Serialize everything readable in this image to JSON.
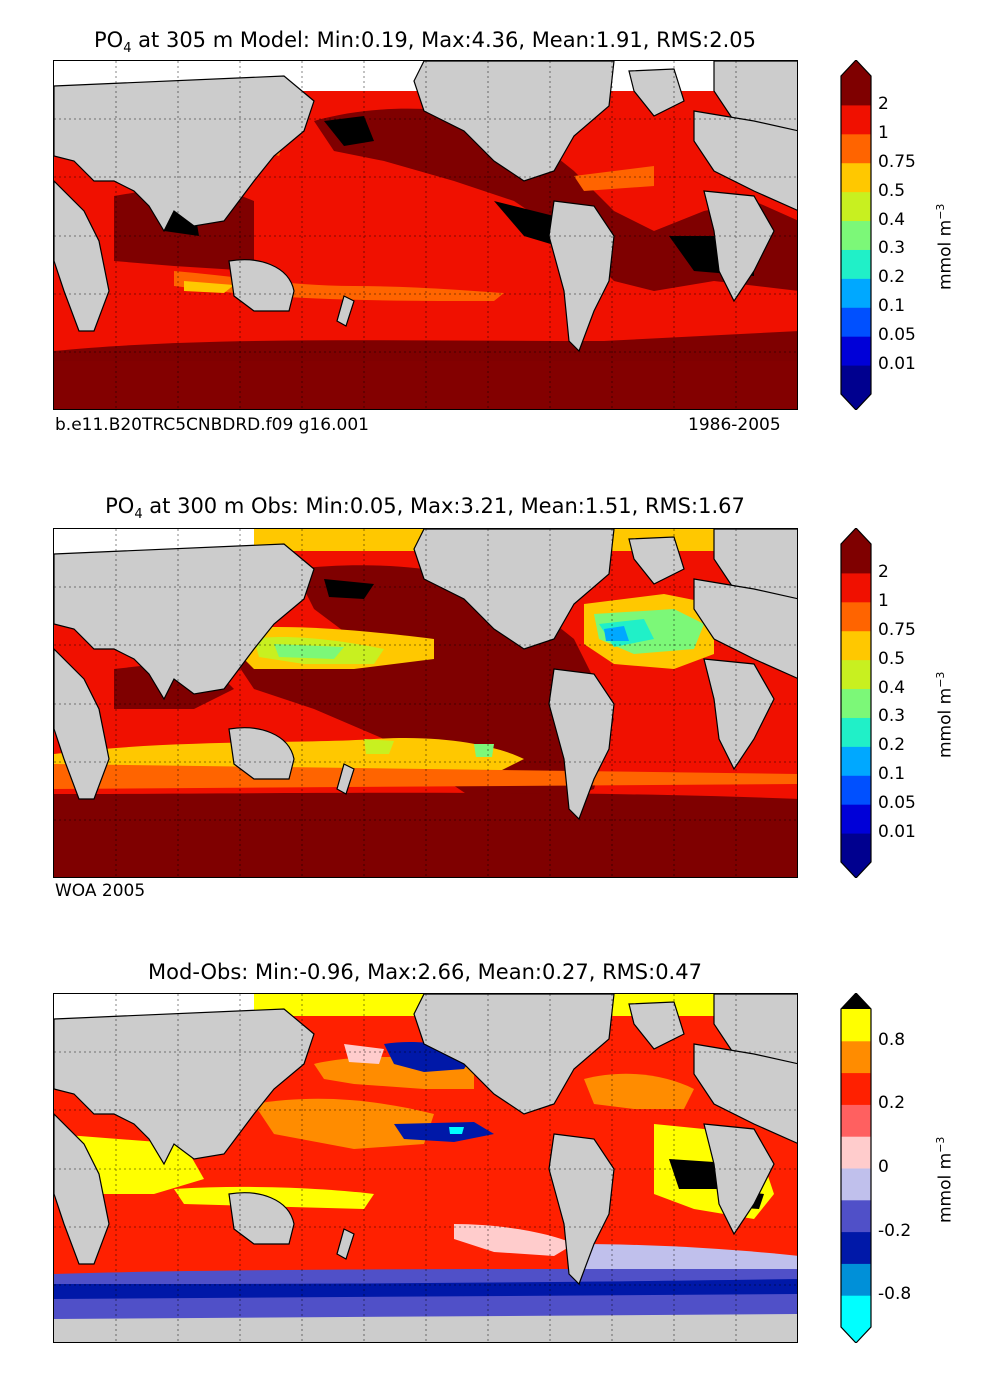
{
  "panels": [
    {
      "id": "model",
      "title_main": "PO",
      "title_sub": "4",
      "title_rest": " at 305 m Model: Min:0.19, Max:4.36, Mean:1.91, RMS:2.05",
      "footer_left": "b.e11.B20TRC5CNBDRD.f09 g16.001",
      "footer_right": "1986-2005",
      "colorbar": {
        "units_main": "mmol m",
        "units_sup": "−3",
        "ticks": [
          "0.01",
          "0.05",
          "0.1",
          "0.2",
          "0.3",
          "0.4",
          "0.5",
          "0.75",
          "1",
          "2"
        ],
        "colors": [
          "#00008f",
          "#0000d8",
          "#0050ff",
          "#00a8ff",
          "#20f0c8",
          "#7cf878",
          "#c8f020",
          "#ffc800",
          "#ff6400",
          "#f01000",
          "#7f0000"
        ],
        "extend_low": "#00008f",
        "extend_high": "#7f0000"
      }
    },
    {
      "id": "obs",
      "title_main": "PO",
      "title_sub": "4",
      "title_rest": " at 300 m Obs: Min:0.05, Max:3.21, Mean:1.51, RMS:1.67",
      "footer_left": "WOA 2005",
      "footer_right": "",
      "colorbar": {
        "units_main": "mmol m",
        "units_sup": "−3",
        "ticks": [
          "0.01",
          "0.05",
          "0.1",
          "0.2",
          "0.3",
          "0.4",
          "0.5",
          "0.75",
          "1",
          "2"
        ],
        "colors": [
          "#00008f",
          "#0000d8",
          "#0050ff",
          "#00a8ff",
          "#20f0c8",
          "#7cf878",
          "#c8f020",
          "#ffc800",
          "#ff6400",
          "#f01000",
          "#7f0000"
        ],
        "extend_low": "#00008f",
        "extend_high": "#7f0000"
      }
    },
    {
      "id": "diff",
      "title_main": "Mod-Obs: Min:-0.96, Max:2.66, Mean:0.27, RMS:0.47",
      "title_sub": "",
      "title_rest": "",
      "footer_left": "",
      "footer_right": "",
      "colorbar": {
        "units_main": "mmol m",
        "units_sup": "−3",
        "ticks": [
          "-0.8",
          "",
          "-0.2",
          "",
          "0",
          "",
          "0.2",
          "",
          "0.8"
        ],
        "colors": [
          "#00ffff",
          "#0090d8",
          "#0018a8",
          "#5050c8",
          "#c0c0ec",
          "#ffcccc",
          "#ff6060",
          "#ff2000",
          "#ff8c00",
          "#ffff00"
        ],
        "extend_low": "#00ffff",
        "extend_high": "#000000"
      }
    }
  ],
  "chart_data": [
    {
      "type": "heatmap",
      "title": "PO4 at 305 m Model: Min:0.19, Max:4.36, Mean:1.91, RMS:2.05",
      "variable": "PO4",
      "depth_m": 305,
      "stats": {
        "min": 0.19,
        "max": 4.36,
        "mean": 1.91,
        "rms": 2.05
      },
      "units": "mmol m-3",
      "levels": [
        0.01,
        0.05,
        0.1,
        0.2,
        0.3,
        0.4,
        0.5,
        0.75,
        1,
        2
      ],
      "source": "b.e11.B20TRC5CNBDRD.f09 g16.001",
      "period": "1986-2005"
    },
    {
      "type": "heatmap",
      "title": "PO4 at 300 m Obs: Min:0.05, Max:3.21, Mean:1.51, RMS:1.67",
      "variable": "PO4",
      "depth_m": 300,
      "stats": {
        "min": 0.05,
        "max": 3.21,
        "mean": 1.51,
        "rms": 1.67
      },
      "units": "mmol m-3",
      "levels": [
        0.01,
        0.05,
        0.1,
        0.2,
        0.3,
        0.4,
        0.5,
        0.75,
        1,
        2
      ],
      "source": "WOA 2005"
    },
    {
      "type": "heatmap",
      "title": "Mod-Obs: Min:-0.96, Max:2.66, Mean:0.27, RMS:0.47",
      "stats": {
        "min": -0.96,
        "max": 2.66,
        "mean": 0.27,
        "rms": 0.47
      },
      "units": "mmol m-3",
      "levels": [
        -0.8,
        -0.2,
        0,
        0.2,
        0.8
      ]
    }
  ]
}
